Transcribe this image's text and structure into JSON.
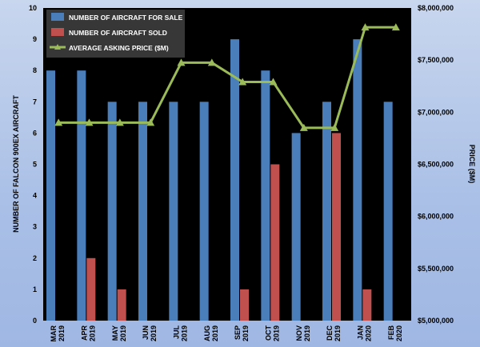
{
  "chart_data": {
    "type": "bar",
    "categories": [
      "MAR 2019",
      "APR 2019",
      "MAY 2019",
      "JUN 2019",
      "JUL 2019",
      "AUG 2019",
      "SEP 2019",
      "OCT 2019",
      "NOV 2019",
      "DEC 2019",
      "JAN 2020",
      "FEB 2020"
    ],
    "series": [
      {
        "name": "NUMBER OF AIRCRAFT FOR SALE",
        "type": "bar",
        "axis": "left",
        "color": "#4a7ebb",
        "values": [
          8,
          8,
          7,
          7,
          7,
          7,
          9,
          8,
          6,
          7,
          9,
          7
        ]
      },
      {
        "name": "NUMBER OF AIRCRAFT SOLD",
        "type": "bar",
        "axis": "left",
        "color": "#c0504d",
        "values": [
          0,
          2,
          1,
          0,
          0,
          0,
          1,
          5,
          0,
          6,
          1,
          0
        ]
      },
      {
        "name": "AVERAGE ASKING PRICE ($M)",
        "type": "line",
        "axis": "right",
        "color": "#9bbb59",
        "values": [
          6900000,
          6900000,
          6900000,
          6900000,
          7475000,
          7475000,
          7290000,
          7290000,
          6850000,
          6850000,
          7815000,
          7815000
        ]
      }
    ],
    "ylabel": "NUMBER OF FALCON 900EX  AIRCRAFT",
    "y2label": "PRICE ($M)",
    "ylim": [
      0,
      10
    ],
    "y_ticks": [
      "0",
      "1",
      "2",
      "3",
      "4",
      "5",
      "6",
      "7",
      "8",
      "9",
      "10"
    ],
    "y2lim": [
      5000000,
      8000000
    ],
    "y2_ticks": [
      "$5,000,000",
      "$5,500,000",
      "$6,000,000",
      "$6,500,000",
      "$7,000,000",
      "$7,500,000",
      "$8,000,000"
    ],
    "x_tick_labels": [
      [
        "MAR",
        "2019"
      ],
      [
        "APR",
        "2019"
      ],
      [
        "MAY",
        "2019"
      ],
      [
        "JUN",
        "2019"
      ],
      [
        "JUL",
        "2019"
      ],
      [
        "AUG",
        "2019"
      ],
      [
        "SEP",
        "2019"
      ],
      [
        "OCT",
        "2019"
      ],
      [
        "NOV",
        "2019"
      ],
      [
        "DEC",
        "2019"
      ],
      [
        "JAN",
        "2020"
      ],
      [
        "FEB",
        "2020"
      ]
    ],
    "plot_background": "#000000",
    "grid": false,
    "legend_position": "top-left"
  }
}
